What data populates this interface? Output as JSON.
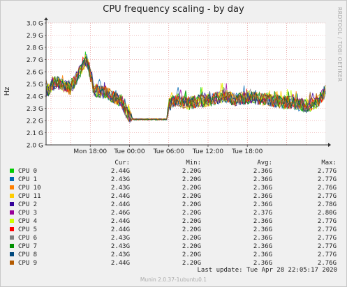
{
  "title": "CPU frequency scaling - by day",
  "y_axis_label": "Hz",
  "watermark": "RRDTOOL / TOBI OETIKER",
  "last_update": "Last update: Tue Apr 28 22:05:17 2020",
  "footer": "Munin 2.0.37-1ubuntu0.1",
  "legend_header": {
    "cur": "Cur:",
    "min": "Min:",
    "avg": "Avg:",
    "max": "Max:"
  },
  "legend": [
    {
      "name": "CPU 0",
      "color": "#00cc00",
      "cur": "2.44G",
      "min": "2.20G",
      "avg": "2.36G",
      "max": "2.77G"
    },
    {
      "name": "CPU 1",
      "color": "#0066b3",
      "cur": "2.43G",
      "min": "2.20G",
      "avg": "2.36G",
      "max": "2.77G"
    },
    {
      "name": "CPU 10",
      "color": "#ff8000",
      "cur": "2.43G",
      "min": "2.20G",
      "avg": "2.36G",
      "max": "2.76G"
    },
    {
      "name": "CPU 11",
      "color": "#ffcc00",
      "cur": "2.44G",
      "min": "2.20G",
      "avg": "2.36G",
      "max": "2.77G"
    },
    {
      "name": "CPU 2",
      "color": "#330099",
      "cur": "2.44G",
      "min": "2.20G",
      "avg": "2.36G",
      "max": "2.78G"
    },
    {
      "name": "CPU 3",
      "color": "#990099",
      "cur": "2.46G",
      "min": "2.20G",
      "avg": "2.37G",
      "max": "2.80G"
    },
    {
      "name": "CPU 4",
      "color": "#ccff00",
      "cur": "2.44G",
      "min": "2.20G",
      "avg": "2.36G",
      "max": "2.77G"
    },
    {
      "name": "CPU 5",
      "color": "#ff0000",
      "cur": "2.44G",
      "min": "2.20G",
      "avg": "2.36G",
      "max": "2.77G"
    },
    {
      "name": "CPU 6",
      "color": "#808080",
      "cur": "2.43G",
      "min": "2.20G",
      "avg": "2.36G",
      "max": "2.77G"
    },
    {
      "name": "CPU 7",
      "color": "#008f00",
      "cur": "2.43G",
      "min": "2.20G",
      "avg": "2.36G",
      "max": "2.77G"
    },
    {
      "name": "CPU 8",
      "color": "#00487d",
      "cur": "2.43G",
      "min": "2.20G",
      "avg": "2.36G",
      "max": "2.77G"
    },
    {
      "name": "CPU 9",
      "color": "#b35a00",
      "cur": "2.44G",
      "min": "2.20G",
      "avg": "2.36G",
      "max": "2.76G"
    }
  ],
  "chart_data": {
    "type": "line",
    "title": "CPU frequency scaling - by day",
    "ylabel": "Hz",
    "ylim": [
      2.0,
      3.0
    ],
    "y_unit": "GHz",
    "y_ticks": [
      2.0,
      2.1,
      2.2,
      2.3,
      2.4,
      2.5,
      2.6,
      2.7,
      2.8,
      2.9,
      3.0
    ],
    "y_tick_labels": [
      "2.0 G",
      "2.1 G",
      "2.2 G",
      "2.3 G",
      "2.4 G",
      "2.5 G",
      "2.6 G",
      "2.7 G",
      "2.8 G",
      "2.9 G",
      "3.0 G"
    ],
    "x_unit": "hours",
    "xlim": [
      -26.5,
      1.95
    ],
    "x_ticks": [
      -22,
      -18,
      -14,
      -10,
      -6
    ],
    "x_tick_labels": [
      "Mon 18:00",
      "Tue 00:00",
      "Tue 06:00",
      "Tue 12:00",
      "Tue 18:00"
    ],
    "x_grid": [
      -26,
      -24,
      -22,
      -20,
      -18,
      -16,
      -14,
      -12,
      -10,
      -8,
      -6,
      -4,
      -2,
      0
    ],
    "grid": true,
    "series_profile": {
      "x": [
        -26.5,
        -25.5,
        -24.6,
        -24.0,
        -23.2,
        -22.4,
        -21.6,
        -20.2,
        -19.6,
        -18.8,
        -18.2,
        -17.6,
        -16.4,
        -15.0,
        -14.4,
        -14.2,
        -14.0,
        -13.2,
        -12.0,
        -10.8,
        -9.6,
        -8.4,
        -7.2,
        -6.0,
        -4.8,
        -3.6,
        -2.4,
        -1.2,
        0.0,
        1.0,
        1.95
      ],
      "y": [
        2.43,
        2.52,
        2.48,
        2.46,
        2.58,
        2.7,
        2.45,
        2.42,
        2.39,
        2.36,
        2.25,
        2.21,
        2.21,
        2.21,
        2.21,
        2.21,
        2.33,
        2.37,
        2.34,
        2.36,
        2.37,
        2.4,
        2.37,
        2.39,
        2.38,
        2.37,
        2.35,
        2.34,
        2.32,
        2.34,
        2.44
      ]
    }
  }
}
